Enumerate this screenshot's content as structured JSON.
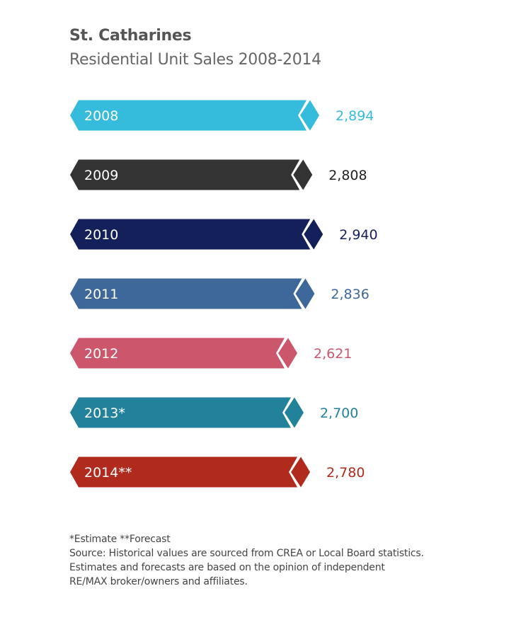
{
  "chart_data": {
    "type": "bar",
    "orientation": "horizontal",
    "title": "St. Catharines",
    "subtitle": "Residential Unit Sales 2008-2014",
    "categories": [
      "2008",
      "2009",
      "2010",
      "2011",
      "2012",
      "2013*",
      "2014**"
    ],
    "values": [
      2894,
      2808,
      2940,
      2836,
      2621,
      2700,
      2780
    ],
    "value_labels": [
      "2,894",
      "2,808",
      "2,940",
      "2,836",
      "2,621",
      "2,700",
      "2,780"
    ],
    "colors": [
      "#35bbdc",
      "#333333",
      "#14205a",
      "#3d6899",
      "#cc566c",
      "#22829c",
      "#b02a1e"
    ],
    "grid": false,
    "legend": "none"
  },
  "footnotes": {
    "note": "*Estimate **Forecast",
    "source": "Source: Historical values are sourced from CREA or Local Board statistics.",
    "line2": "Estimates and forecasts are based on the opinion of independent",
    "line3": "RE/MAX broker/owners and affiliates."
  }
}
